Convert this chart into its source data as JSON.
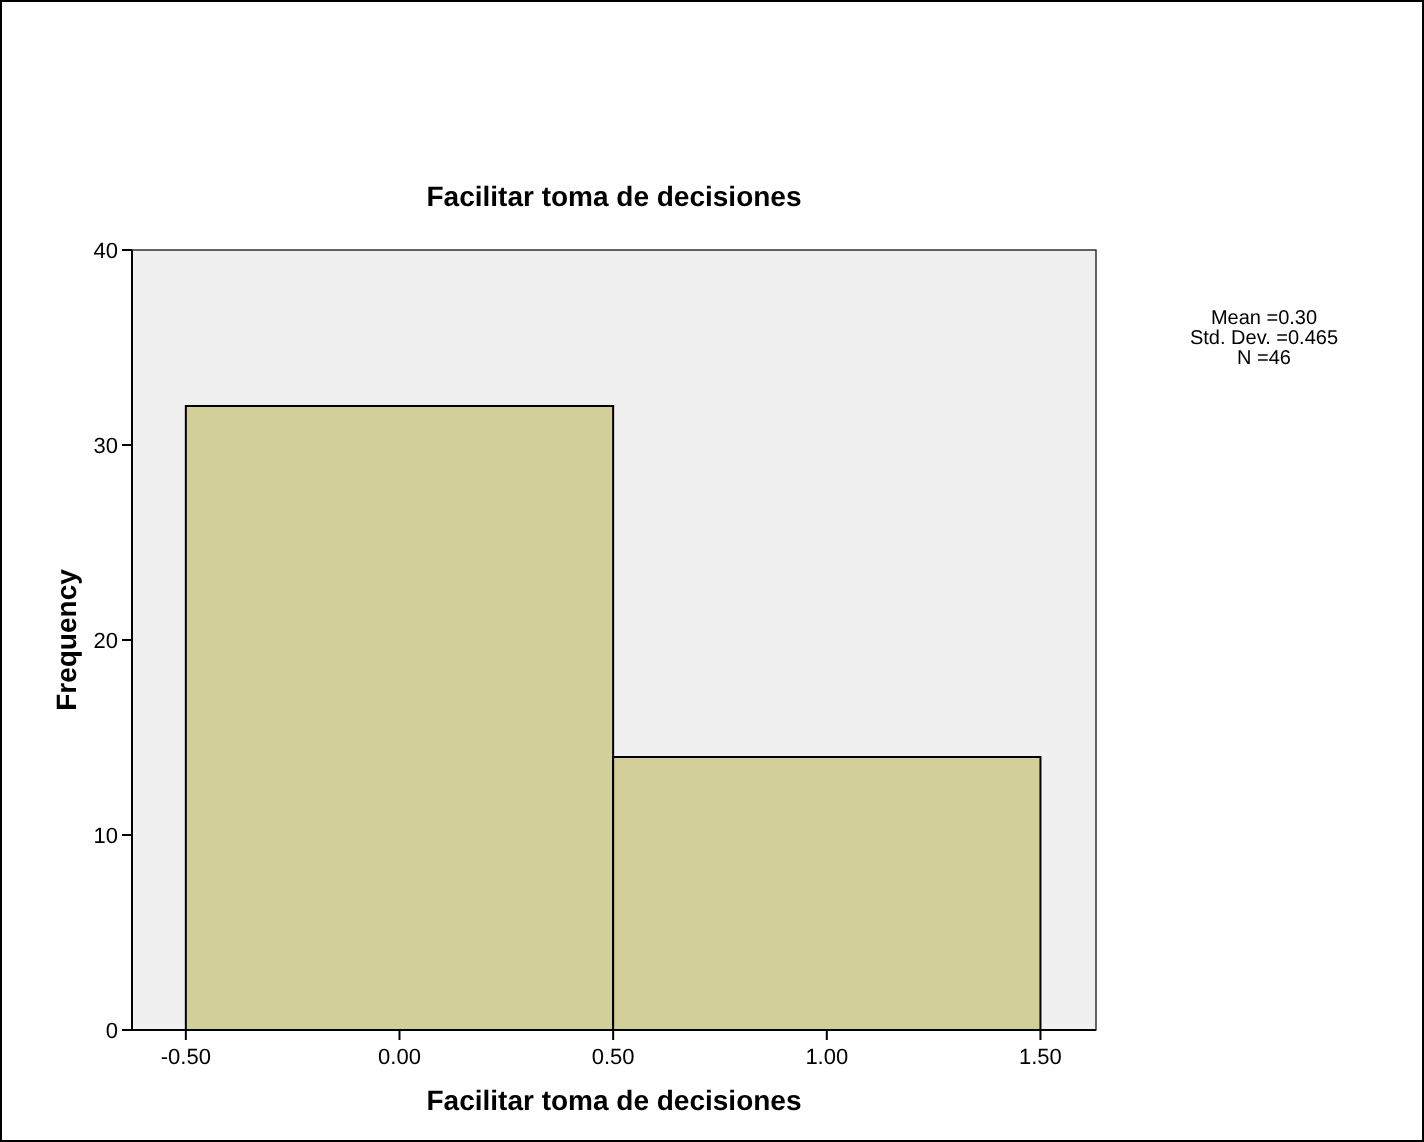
{
  "chart_data": {
    "type": "histogram",
    "title": "Facilitar toma de decisiones",
    "xlabel": "Facilitar toma de decisiones",
    "ylabel": "Frequency",
    "bins": [
      -0.5,
      0.5,
      1.5
    ],
    "values": [
      32,
      14
    ],
    "color": "#d3cf99",
    "xlim": [
      -0.626,
      1.63
    ],
    "xticks": [
      {
        "value": -0.5,
        "label": "-0.50"
      },
      {
        "value": 0,
        "label": "0.00"
      },
      {
        "value": 0.5,
        "label": "0.50"
      },
      {
        "value": 1,
        "label": "1.00"
      },
      {
        "value": 1.5,
        "label": "1.50"
      }
    ],
    "ylim": [
      0,
      40
    ],
    "yticks": [
      0,
      10,
      20,
      30,
      40
    ],
    "grid": false,
    "annotations": [
      "Mean =0.30",
      "Std. Dev. =0.465",
      "N =46"
    ]
  }
}
